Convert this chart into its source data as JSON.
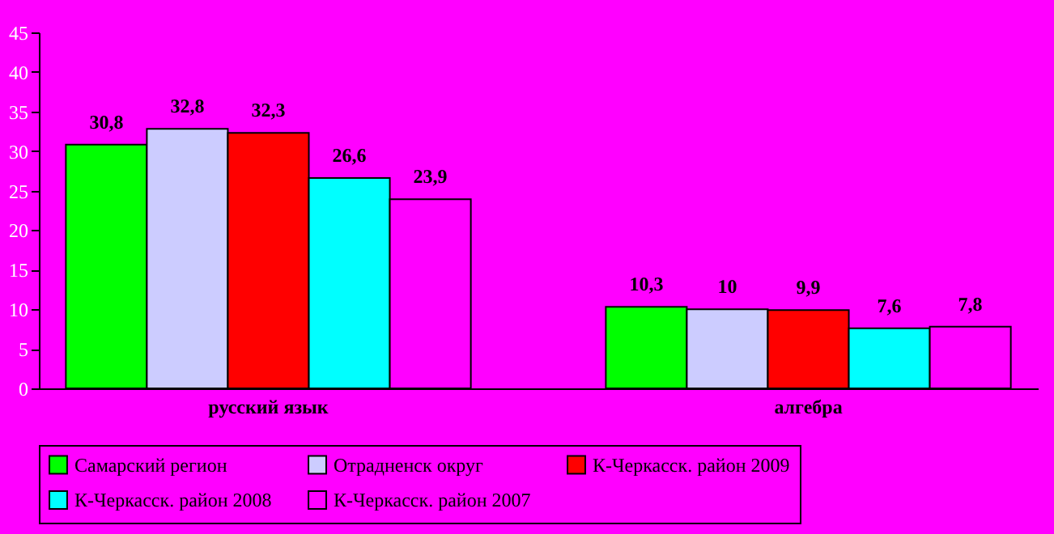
{
  "chart_data": {
    "type": "bar",
    "categories": [
      "русский язык",
      "алгебра"
    ],
    "series": [
      {
        "name": "Самарский регион",
        "color": "#00ff00",
        "values": [
          30.8,
          10.3
        ],
        "value_labels": [
          "30,8",
          "10,3"
        ]
      },
      {
        "name": "Отрадненск округ",
        "color": "#ccccff",
        "values": [
          32.8,
          10
        ],
        "value_labels": [
          "32,8",
          "10"
        ]
      },
      {
        "name": "К-Черкасск. район 2009",
        "color": "#ff0000",
        "values": [
          32.3,
          9.9
        ],
        "value_labels": [
          "32,3",
          "9,9"
        ]
      },
      {
        "name": "К-Черкасск. район 2008",
        "color": "#00ffff",
        "values": [
          26.6,
          7.6
        ],
        "value_labels": [
          "26,6",
          "7,6"
        ]
      },
      {
        "name": "К-Черкасск. район 2007",
        "color": "#ff00ff",
        "values": [
          23.9,
          7.8
        ],
        "value_labels": [
          "23,9",
          "7,8"
        ]
      }
    ],
    "ylim": [
      0,
      45
    ],
    "yticks": [
      0,
      5,
      10,
      15,
      20,
      25,
      30,
      35,
      40,
      45
    ],
    "grid": false,
    "legend": "bottom"
  }
}
